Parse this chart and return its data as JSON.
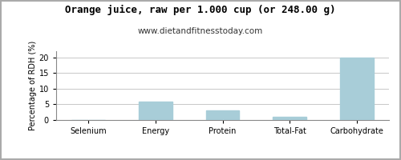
{
  "title": "Orange juice, raw per 1.000 cup (or 248.00 g)",
  "subtitle": "www.dietandfitnesstoday.com",
  "categories": [
    "Selenium",
    "Energy",
    "Protein",
    "Total-Fat",
    "Carbohydrate"
  ],
  "values": [
    0,
    6,
    3,
    1,
    20
  ],
  "bar_color": "#a8cdd8",
  "bar_edgecolor": "#a8cdd8",
  "ylabel": "Percentage of RDH (%)",
  "ylim": [
    0,
    22
  ],
  "yticks": [
    0,
    5,
    10,
    15,
    20
  ],
  "grid_color": "#c8c8c8",
  "background_color": "#ffffff",
  "border_color": "#aaaaaa",
  "title_fontsize": 9,
  "subtitle_fontsize": 7.5,
  "tick_fontsize": 7,
  "ylabel_fontsize": 7
}
